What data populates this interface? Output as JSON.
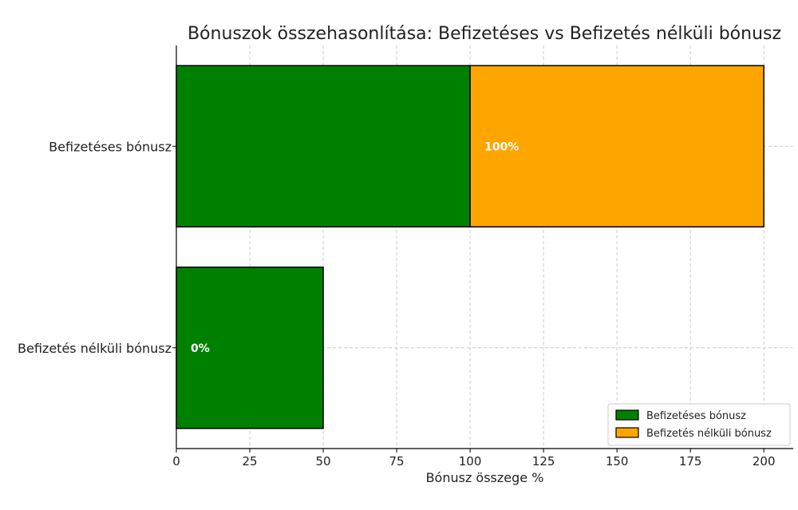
{
  "chart_data": {
    "type": "bar",
    "orientation": "horizontal",
    "stacked": true,
    "title": "Bónuszok összehasonlítása: Befizetéses vs Befizetés nélküli bónusz",
    "xlabel": "Bónusz összege %",
    "ylabel": "",
    "xlim": [
      0,
      210
    ],
    "xticks": [
      "0",
      "25",
      "50",
      "75",
      "100",
      "125",
      "150",
      "175",
      "200"
    ],
    "categories": [
      "Befizetéses bónusz",
      "Befizetés nélküli bónusz"
    ],
    "series": [
      {
        "name": "Befizetéses bónusz",
        "color": "#008000",
        "values": [
          100,
          50
        ]
      },
      {
        "name": "Befizetés nélküli bónusz",
        "color": "#FFA500",
        "values": [
          100,
          0
        ]
      }
    ],
    "bar_labels": [
      "100%",
      "0%"
    ],
    "grid": true,
    "legend_position": "bottom-right"
  }
}
